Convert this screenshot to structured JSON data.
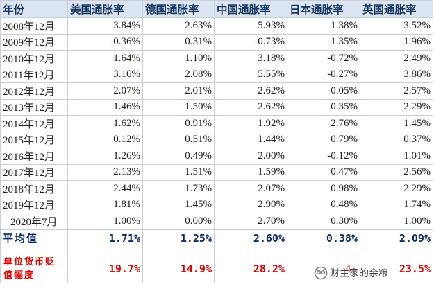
{
  "headers": [
    "年份",
    "美国通胀率",
    "德国通胀率",
    "中国通胀率",
    "日本通胀率",
    "英国通胀率"
  ],
  "rows": [
    {
      "date": "2008年12月",
      "values": [
        "3.84%",
        "2.63%",
        "5.93%",
        "1.38%",
        "3.52%"
      ]
    },
    {
      "date": "2009年12月",
      "values": [
        "-0.36%",
        "0.31%",
        "-0.73%",
        "-1.35%",
        "1.96%"
      ]
    },
    {
      "date": "2010年12月",
      "values": [
        "1.64%",
        "1.10%",
        "3.18%",
        "-0.72%",
        "2.49%"
      ]
    },
    {
      "date": "2011年12月",
      "values": [
        "3.16%",
        "2.08%",
        "5.55%",
        "-0.27%",
        "3.86%"
      ]
    },
    {
      "date": "2012年12月",
      "values": [
        "2.07%",
        "2.01%",
        "2.62%",
        "-0.05%",
        "2.57%"
      ]
    },
    {
      "date": "2013年12月",
      "values": [
        "1.46%",
        "1.50%",
        "2.62%",
        "0.35%",
        "2.29%"
      ]
    },
    {
      "date": "2014年12月",
      "values": [
        "1.62%",
        "0.91%",
        "1.92%",
        "2.76%",
        "1.45%"
      ]
    },
    {
      "date": "2015年12月",
      "values": [
        "0.12%",
        "0.51%",
        "1.44%",
        "0.79%",
        "0.37%"
      ]
    },
    {
      "date": "2016年12月",
      "values": [
        "1.26%",
        "0.49%",
        "2.00%",
        "-0.12%",
        "1.01%"
      ]
    },
    {
      "date": "2017年12月",
      "values": [
        "2.13%",
        "1.51%",
        "1.59%",
        "0.47%",
        "2.56%"
      ]
    },
    {
      "date": "2018年12月",
      "values": [
        "2.44%",
        "1.73%",
        "2.07%",
        "0.98%",
        "2.29%"
      ]
    },
    {
      "date": "2019年12月",
      "values": [
        "1.81%",
        "1.45%",
        "2.90%",
        "0.48%",
        "1.74%"
      ]
    },
    {
      "date": "2020年7月",
      "values": [
        "1.00%",
        "0.00%",
        "2.70%",
        "0.30%",
        "1.00%"
      ]
    }
  ],
  "average": {
    "label": "平均值",
    "values": [
      "1.71%",
      "1.25%",
      "2.60%",
      "0.38%",
      "2.09%"
    ]
  },
  "depreciation": {
    "label": "单位货币贬值幅度",
    "values": [
      "19.7%",
      "14.9%",
      "28.2%",
      "4.",
      "23.5%"
    ]
  },
  "watermark": {
    "text": "财主家的余粮",
    "icon": "wechat-channel-icon"
  }
}
